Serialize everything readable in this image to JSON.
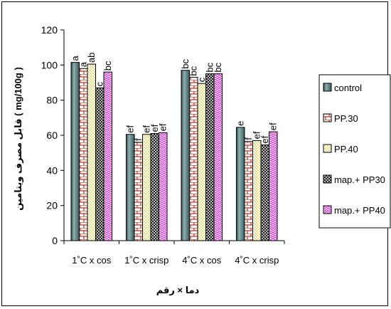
{
  "chart_data": {
    "type": "bar",
    "title": "",
    "xlabel": "دما × رقم",
    "ylabel": "( mg/100g ) قابل مصرف ویتامین",
    "ylim": [
      0,
      120
    ],
    "yticks": [
      0,
      20,
      40,
      60,
      80,
      100,
      120
    ],
    "grid": false,
    "legend_position": "right",
    "categories": [
      "1˚C x cos",
      "1˚C x crisp",
      "4˚C x cos",
      "4˚C x crisp"
    ],
    "series": [
      {
        "name": "control",
        "values": [
          101.5,
          60.5,
          97,
          64.5
        ],
        "letters": [
          "a",
          "ef",
          "bc",
          "e"
        ],
        "color": "#4a6d6e",
        "pattern": "solid"
      },
      {
        "name": "PP.30",
        "values": [
          98,
          56,
          93,
          56.5
        ],
        "letters": [
          "a",
          "f",
          "bc",
          "f"
        ],
        "color": "#c0392b",
        "pattern": "brick"
      },
      {
        "name": "PP.40",
        "values": [
          100.5,
          60.5,
          89.5,
          57
        ],
        "letters": [
          "ab",
          "ef",
          "c",
          "ef"
        ],
        "color": "#c9b800",
        "pattern": "dots"
      },
      {
        "name": "map.+ PP30",
        "values": [
          87,
          61,
          95,
          54.5
        ],
        "letters": [
          "c",
          "ef",
          "bc",
          "ef"
        ],
        "color": "#333333",
        "pattern": "checker"
      },
      {
        "name": "map.+ PP40",
        "values": [
          96,
          61.5,
          95,
          62
        ],
        "letters": [
          "bc",
          "ef",
          "bc",
          "ef"
        ],
        "color": "#cc33cc",
        "pattern": "zigzag"
      }
    ]
  }
}
